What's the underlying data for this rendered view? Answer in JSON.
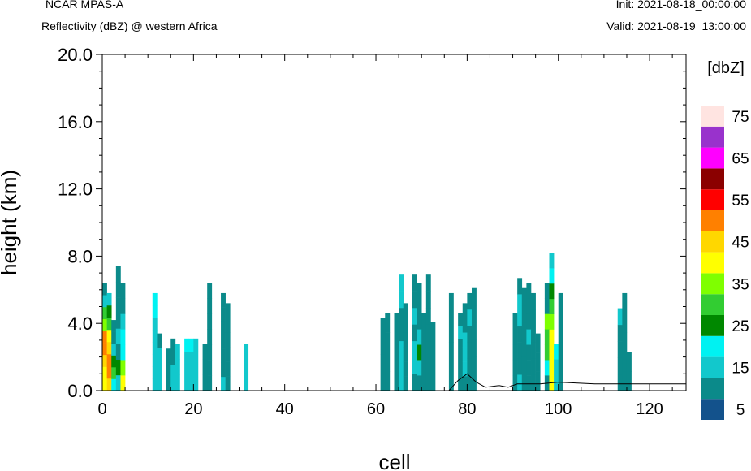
{
  "header": {
    "model": "NCAR MPAS-A",
    "field": "Reflectivity (dBZ) @ western Africa",
    "init": "Init: 2021-08-18_00:00:00",
    "valid": "Valid: 2021-08-19_13:00:00"
  },
  "chart_data": {
    "type": "heatmap",
    "xlabel": "cell",
    "ylabel": "height (km)",
    "xlim": [
      0,
      128
    ],
    "ylim": [
      0,
      20
    ],
    "x_ticks": [
      "0",
      "20",
      "40",
      "60",
      "80",
      "100",
      "120"
    ],
    "y_ticks": [
      "0.0",
      "4.0",
      "8.0",
      "12.0",
      "16.0",
      "20.0"
    ],
    "colorbar": {
      "unit": "[dbZ]",
      "labels": [
        "5",
        "15",
        "25",
        "35",
        "45",
        "55",
        "65",
        "75"
      ],
      "colors": [
        "#13528c",
        "#0b8a8a",
        "#12c8cc",
        "#00f2f2",
        "#008800",
        "#32cd32",
        "#7fff00",
        "#ffff00",
        "#ffd700",
        "#ff8000",
        "#ff0000",
        "#8b0000",
        "#ff00ff",
        "#9932cc",
        "#ffe4e1"
      ]
    },
    "columns": [
      {
        "x": 0,
        "top": 6.4,
        "levels": [
          7,
          7,
          8,
          9,
          9,
          6,
          5,
          2,
          1
        ]
      },
      {
        "x": 1,
        "top": 5.8,
        "levels": [
          8,
          9,
          9,
          8,
          7,
          5,
          4,
          2
        ]
      },
      {
        "x": 2,
        "top": 4.2,
        "levels": [
          3,
          5,
          4,
          2,
          1,
          1
        ]
      },
      {
        "x": 3,
        "top": 7.4,
        "levels": [
          2,
          4,
          1,
          2,
          1,
          1,
          1,
          1
        ]
      },
      {
        "x": 4,
        "top": 6.4,
        "levels": [
          7,
          6,
          3,
          3,
          2,
          1,
          1
        ]
      },
      {
        "x": 11,
        "top": 5.8,
        "levels": [
          2,
          2,
          2,
          2,
          2,
          2,
          3,
          3
        ]
      },
      {
        "x": 12,
        "top": 3.4,
        "levels": [
          2,
          2,
          2,
          1
        ]
      },
      {
        "x": 14,
        "top": 2.5,
        "levels": [
          1,
          1,
          1
        ]
      },
      {
        "x": 15,
        "top": 3.1,
        "levels": [
          2,
          2,
          1,
          1
        ]
      },
      {
        "x": 16,
        "top": 2.8,
        "levels": [
          2,
          2,
          2
        ]
      },
      {
        "x": 18,
        "top": 3.1,
        "levels": [
          2,
          2,
          2,
          3
        ]
      },
      {
        "x": 19,
        "top": 3.1,
        "levels": [
          2,
          2,
          2,
          3
        ]
      },
      {
        "x": 20,
        "top": 3.1,
        "levels": [
          2,
          2,
          2,
          2
        ]
      },
      {
        "x": 22,
        "top": 2.8,
        "levels": [
          1,
          1,
          1
        ]
      },
      {
        "x": 23,
        "top": 6.4,
        "levels": [
          1,
          1,
          1,
          1,
          1,
          1,
          1
        ]
      },
      {
        "x": 26,
        "top": 5.8,
        "levels": [
          2,
          1,
          1,
          1,
          1,
          1,
          1
        ]
      },
      {
        "x": 27,
        "top": 5.2,
        "levels": [
          1,
          1,
          1,
          1,
          1,
          1
        ]
      },
      {
        "x": 31,
        "top": 2.8,
        "levels": [
          2,
          2,
          2
        ]
      },
      {
        "x": 61,
        "top": 4.3,
        "levels": [
          1,
          1
        ]
      },
      {
        "x": 62,
        "top": 4.6,
        "levels": [
          1,
          1,
          1,
          1
        ]
      },
      {
        "x": 64,
        "top": 4.6,
        "levels": [
          1,
          1,
          1,
          1,
          1
        ]
      },
      {
        "x": 65,
        "top": 6.9,
        "levels": [
          2,
          2,
          2,
          1,
          1,
          2,
          2
        ]
      },
      {
        "x": 66,
        "top": 5.2,
        "levels": [
          1,
          1,
          1,
          1,
          1,
          1
        ]
      },
      {
        "x": 68,
        "top": 6.9,
        "levels": [
          1,
          2,
          2,
          1,
          2,
          1,
          1
        ]
      },
      {
        "x": 69,
        "top": 6.4,
        "levels": [
          1,
          2,
          4,
          2,
          1,
          1,
          1
        ]
      },
      {
        "x": 70,
        "top": 4.6,
        "levels": [
          1,
          1,
          1
        ]
      },
      {
        "x": 71,
        "top": 6.9,
        "levels": [
          1,
          1,
          1,
          1,
          1,
          1,
          1
        ]
      },
      {
        "x": 72,
        "top": 4.1,
        "levels": [
          1,
          1
        ]
      },
      {
        "x": 76,
        "top": 5.8,
        "levels": [
          1,
          1
        ]
      },
      {
        "x": 78,
        "top": 4.6,
        "levels": [
          1,
          1,
          1,
          1,
          2,
          1
        ]
      },
      {
        "x": 79,
        "top": 5.2,
        "levels": [
          1,
          2,
          2,
          2,
          1,
          1
        ]
      },
      {
        "x": 80,
        "top": 5.8,
        "levels": [
          1,
          1,
          1,
          1,
          2,
          1
        ]
      },
      {
        "x": 81,
        "top": 6.1,
        "levels": [
          1,
          1,
          1,
          1,
          1,
          1
        ]
      },
      {
        "x": 90,
        "top": 4.6,
        "levels": [
          1,
          1,
          1,
          1,
          1
        ]
      },
      {
        "x": 91,
        "top": 6.7,
        "levels": [
          2,
          1,
          1,
          1,
          2,
          2,
          1
        ]
      },
      {
        "x": 92,
        "top": 6.1,
        "levels": [
          1,
          1,
          1,
          1,
          1,
          1
        ]
      },
      {
        "x": 93,
        "top": 6.4,
        "levels": [
          1,
          1,
          1,
          2,
          1,
          1,
          1
        ]
      },
      {
        "x": 94,
        "top": 5.8,
        "levels": [
          1,
          1,
          1,
          1,
          1,
          1
        ]
      },
      {
        "x": 95,
        "top": 3.4,
        "levels": [
          1,
          1,
          1
        ]
      },
      {
        "x": 97,
        "top": 6.4,
        "levels": [
          1,
          3,
          5,
          5,
          6,
          1,
          1
        ]
      },
      {
        "x": 98,
        "top": 8.2,
        "levels": [
          7,
          7,
          7,
          7,
          6,
          5,
          4,
          3,
          2
        ]
      },
      {
        "x": 99,
        "top": 2.8,
        "levels": [
          2,
          2,
          3
        ]
      },
      {
        "x": 100,
        "top": 5.8,
        "levels": [
          1,
          1
        ]
      },
      {
        "x": 113,
        "top": 4.9,
        "levels": [
          1,
          1,
          1,
          1,
          2
        ]
      },
      {
        "x": 114,
        "top": 5.8,
        "levels": [
          1,
          1,
          1,
          1,
          1
        ]
      },
      {
        "x": 115,
        "top": 2.3,
        "levels": [
          1,
          1
        ]
      }
    ]
  }
}
